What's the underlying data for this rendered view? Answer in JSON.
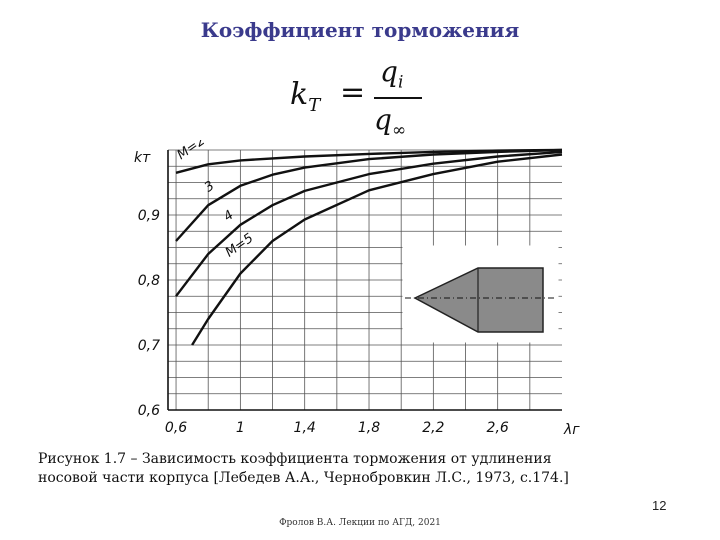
{
  "slide": {
    "title": "Коэффициент торможения",
    "formula": {
      "lhs": "k",
      "lhs_sub": "T",
      "eq": "=",
      "num": "q",
      "num_sub": "i",
      "den": "q",
      "den_sub": "∞"
    },
    "caption_line1": "Рисунок 1.7 – Зависимость коэффициента торможения от удлинения",
    "caption_line2": "носовой части корпуса [Лебедев А.А., Чернобровкин  Л.С., 1973, с.174.]",
    "page_number": "12",
    "footer": "Фролов В.А. Лекции по АГД, 2021"
  },
  "chart_data": {
    "type": "line",
    "ylabel": "kт",
    "xlabel": "λг",
    "x_ticks": [
      "0,6",
      "1",
      "1,4",
      "1,8",
      "2,2",
      "2,6"
    ],
    "y_ticks": [
      "0,6",
      "0,7",
      "0,8",
      "0,9"
    ],
    "xlim": [
      0.55,
      3.0
    ],
    "ylim": [
      0.6,
      1.0
    ],
    "grid": true,
    "series": [
      {
        "name": "M=2",
        "x": [
          0.6,
          0.8,
          1.0,
          1.4,
          1.8,
          2.2,
          2.6,
          3.0
        ],
        "y": [
          0.965,
          0.978,
          0.984,
          0.99,
          0.994,
          0.997,
          0.999,
          1.0
        ]
      },
      {
        "name": "3",
        "x": [
          0.6,
          0.8,
          1.0,
          1.2,
          1.4,
          1.8,
          2.2,
          2.6,
          3.0
        ],
        "y": [
          0.86,
          0.915,
          0.945,
          0.962,
          0.973,
          0.986,
          0.993,
          0.997,
          1.0
        ]
      },
      {
        "name": "4",
        "x": [
          0.6,
          0.8,
          1.0,
          1.2,
          1.4,
          1.8,
          2.2,
          2.6,
          3.0
        ],
        "y": [
          0.775,
          0.84,
          0.885,
          0.915,
          0.937,
          0.963,
          0.979,
          0.99,
          0.997
        ]
      },
      {
        "name": "M=5",
        "x": [
          0.7,
          0.8,
          1.0,
          1.2,
          1.4,
          1.8,
          2.2,
          2.6,
          3.0
        ],
        "y": [
          0.7,
          0.74,
          0.81,
          0.86,
          0.893,
          0.938,
          0.963,
          0.982,
          0.993
        ]
      }
    ],
    "inset": "cone-cylinder body silhouette"
  }
}
